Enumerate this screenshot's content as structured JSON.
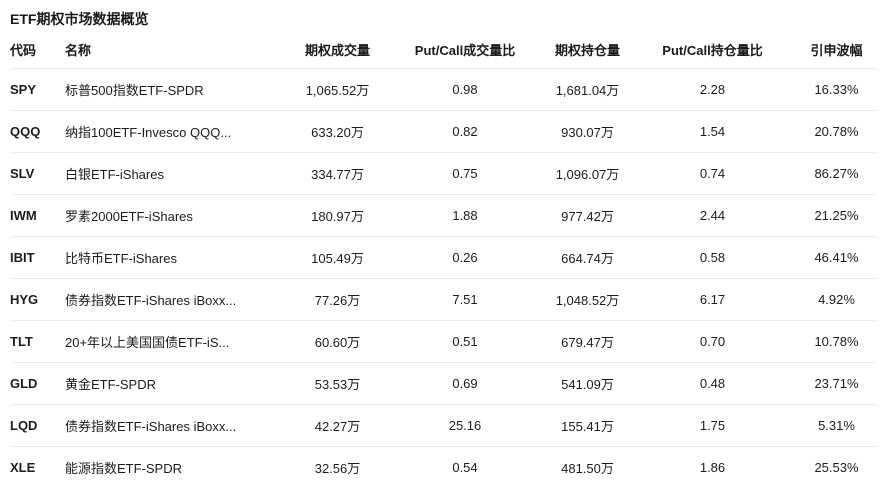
{
  "page": {
    "title": "ETF期权市场数据概览"
  },
  "colors": {
    "background": "#ffffff",
    "text": "#1c1c1c",
    "header_text": "#1a1a1a",
    "divider": "#ebebeb"
  },
  "table": {
    "columns": [
      {
        "key": "code",
        "label": "代码",
        "align": "left"
      },
      {
        "key": "name",
        "label": "名称",
        "align": "left"
      },
      {
        "key": "volume",
        "label": "期权成交量",
        "align": "center"
      },
      {
        "key": "pcv",
        "label": "Put/Call成交量比",
        "align": "center"
      },
      {
        "key": "oi",
        "label": "期权持仓量",
        "align": "center"
      },
      {
        "key": "pcoi",
        "label": "Put/Call持仓量比",
        "align": "center"
      },
      {
        "key": "iv",
        "label": "引申波幅",
        "align": "center"
      }
    ],
    "rows": [
      {
        "code": "SPY",
        "name": "标普500指数ETF-SPDR",
        "volume": "1,065.52万",
        "pcv": "0.98",
        "oi": "1,681.04万",
        "pcoi": "2.28",
        "iv": "16.33%"
      },
      {
        "code": "QQQ",
        "name": "纳指100ETF-Invesco QQQ...",
        "volume": "633.20万",
        "pcv": "0.82",
        "oi": "930.07万",
        "pcoi": "1.54",
        "iv": "20.78%"
      },
      {
        "code": "SLV",
        "name": "白银ETF-iShares",
        "volume": "334.77万",
        "pcv": "0.75",
        "oi": "1,096.07万",
        "pcoi": "0.74",
        "iv": "86.27%"
      },
      {
        "code": "IWM",
        "name": "罗素2000ETF-iShares",
        "volume": "180.97万",
        "pcv": "1.88",
        "oi": "977.42万",
        "pcoi": "2.44",
        "iv": "21.25%"
      },
      {
        "code": "IBIT",
        "name": "比特币ETF-iShares",
        "volume": "105.49万",
        "pcv": "0.26",
        "oi": "664.74万",
        "pcoi": "0.58",
        "iv": "46.41%"
      },
      {
        "code": "HYG",
        "name": "债券指数ETF-iShares iBoxx...",
        "volume": "77.26万",
        "pcv": "7.51",
        "oi": "1,048.52万",
        "pcoi": "6.17",
        "iv": "4.92%"
      },
      {
        "code": "TLT",
        "name": "20+年以上美国国债ETF-iS...",
        "volume": "60.60万",
        "pcv": "0.51",
        "oi": "679.47万",
        "pcoi": "0.70",
        "iv": "10.78%"
      },
      {
        "code": "GLD",
        "name": "黄金ETF-SPDR",
        "volume": "53.53万",
        "pcv": "0.69",
        "oi": "541.09万",
        "pcoi": "0.48",
        "iv": "23.71%"
      },
      {
        "code": "LQD",
        "name": "债券指数ETF-iShares iBoxx...",
        "volume": "42.27万",
        "pcv": "25.16",
        "oi": "155.41万",
        "pcoi": "1.75",
        "iv": "5.31%"
      },
      {
        "code": "XLE",
        "name": "能源指数ETF-SPDR",
        "volume": "32.56万",
        "pcv": "0.54",
        "oi": "481.50万",
        "pcoi": "1.86",
        "iv": "25.53%"
      }
    ]
  }
}
